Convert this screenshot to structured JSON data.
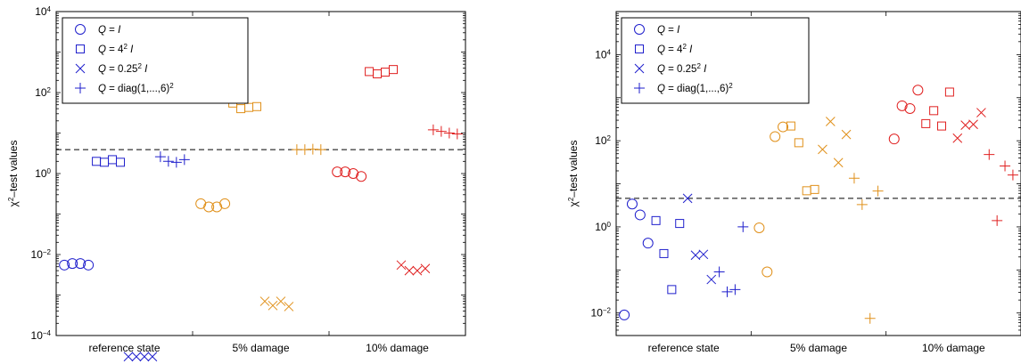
{
  "colors": {
    "reference": "#1f1fcc",
    "damage5": "#e0901a",
    "damage10": "#e02020",
    "threshold": "#000000"
  },
  "chart_data": [
    {
      "type": "scatter",
      "yscale": "log",
      "ylabel": "χ²–test values",
      "ylim": [
        0.0001,
        10000
      ],
      "yticks": [
        "10⁻⁴",
        "10⁻²",
        "10⁰",
        "10²",
        "10⁴"
      ],
      "xticks": [
        "reference state",
        "5% damage",
        "10% damage"
      ],
      "legend_placement": "top-left",
      "threshold": 3.9,
      "legend": [
        {
          "marker": "circle",
          "label": "Q = I"
        },
        {
          "marker": "square",
          "label": "Q = 4² I"
        },
        {
          "marker": "x",
          "label": "Q = 0.25² I"
        },
        {
          "marker": "plus",
          "label": "Q = diag(1,...,6)²"
        }
      ],
      "series": [
        {
          "group": "reference state",
          "marker": "circle",
          "values": [
            0.0055,
            0.006,
            0.006,
            0.0055
          ]
        },
        {
          "group": "reference state",
          "marker": "square",
          "values": [
            2.0,
            1.9,
            2.2,
            1.9
          ]
        },
        {
          "group": "reference state",
          "marker": "x",
          "values": [
            3e-05,
            3e-05,
            3e-05,
            3e-05
          ]
        },
        {
          "group": "reference state",
          "marker": "plus",
          "values": [
            2.6,
            2.0,
            1.9,
            2.2
          ]
        },
        {
          "group": "5% damage",
          "marker": "circle",
          "values": [
            0.18,
            0.15,
            0.15,
            0.18
          ]
        },
        {
          "group": "5% damage",
          "marker": "square",
          "values": [
            55,
            40,
            43,
            45
          ]
        },
        {
          "group": "5% damage",
          "marker": "x",
          "values": [
            0.0007,
            0.00055,
            0.0007,
            0.00052
          ]
        },
        {
          "group": "5% damage",
          "marker": "plus",
          "values": [
            3.9,
            3.9,
            4.0,
            3.9
          ]
        },
        {
          "group": "10% damage",
          "marker": "circle",
          "values": [
            1.1,
            1.1,
            1.0,
            0.85
          ]
        },
        {
          "group": "10% damage",
          "marker": "square",
          "values": [
            330,
            290,
            320,
            370
          ]
        },
        {
          "group": "10% damage",
          "marker": "x",
          "values": [
            0.0055,
            0.004,
            0.004,
            0.0045
          ]
        },
        {
          "group": "10% damage",
          "marker": "plus",
          "values": [
            12,
            11,
            10,
            9.5
          ]
        }
      ]
    },
    {
      "type": "scatter",
      "yscale": "log",
      "ylabel": "χ²–test values",
      "ylim": [
        0.003,
        100000
      ],
      "yticks": [
        "10⁻²",
        "10⁰",
        "10²",
        "10⁴"
      ],
      "xticks": [
        "reference state",
        "5% damage",
        "10% damage"
      ],
      "legend_placement": "top-left",
      "threshold": 4.6,
      "legend": [
        {
          "marker": "circle",
          "label": "Q = I"
        },
        {
          "marker": "square",
          "label": "Q = 4² I"
        },
        {
          "marker": "x",
          "label": "Q = 0.25² I"
        },
        {
          "marker": "plus",
          "label": "Q = diag(1,...,6)²"
        }
      ],
      "series": [
        {
          "group": "reference state",
          "marker": "circle",
          "values": [
            0.009,
            3.4,
            1.9,
            0.42
          ]
        },
        {
          "group": "reference state",
          "marker": "square",
          "values": [
            1.4,
            0.24,
            0.035,
            1.2
          ]
        },
        {
          "group": "reference state",
          "marker": "x",
          "values": [
            4.6,
            0.22,
            0.23,
            0.06
          ]
        },
        {
          "group": "reference state",
          "marker": "plus",
          "values": [
            0.09,
            0.031,
            0.035,
            1.0
          ]
        },
        {
          "group": "5% damage",
          "marker": "circle",
          "values": [
            0.95,
            0.09,
            125,
            210
          ]
        },
        {
          "group": "5% damage",
          "marker": "square",
          "values": [
            220,
            90,
            6.9,
            7.4
          ]
        },
        {
          "group": "5% damage",
          "marker": "x",
          "values": [
            63,
            280,
            31,
            140
          ]
        },
        {
          "group": "5% damage",
          "marker": "plus",
          "values": [
            13.5,
            3.3,
            0.0075,
            6.8
          ]
        },
        {
          "group": "10% damage",
          "marker": "circle",
          "values": [
            110,
            650,
            560,
            1500
          ]
        },
        {
          "group": "10% damage",
          "marker": "square",
          "values": [
            250,
            500,
            220,
            1350
          ]
        },
        {
          "group": "10% damage",
          "marker": "x",
          "values": [
            115,
            230,
            240,
            450
          ]
        },
        {
          "group": "10% damage",
          "marker": "plus",
          "values": [
            48,
            1.4,
            26,
            16
          ]
        }
      ]
    }
  ]
}
